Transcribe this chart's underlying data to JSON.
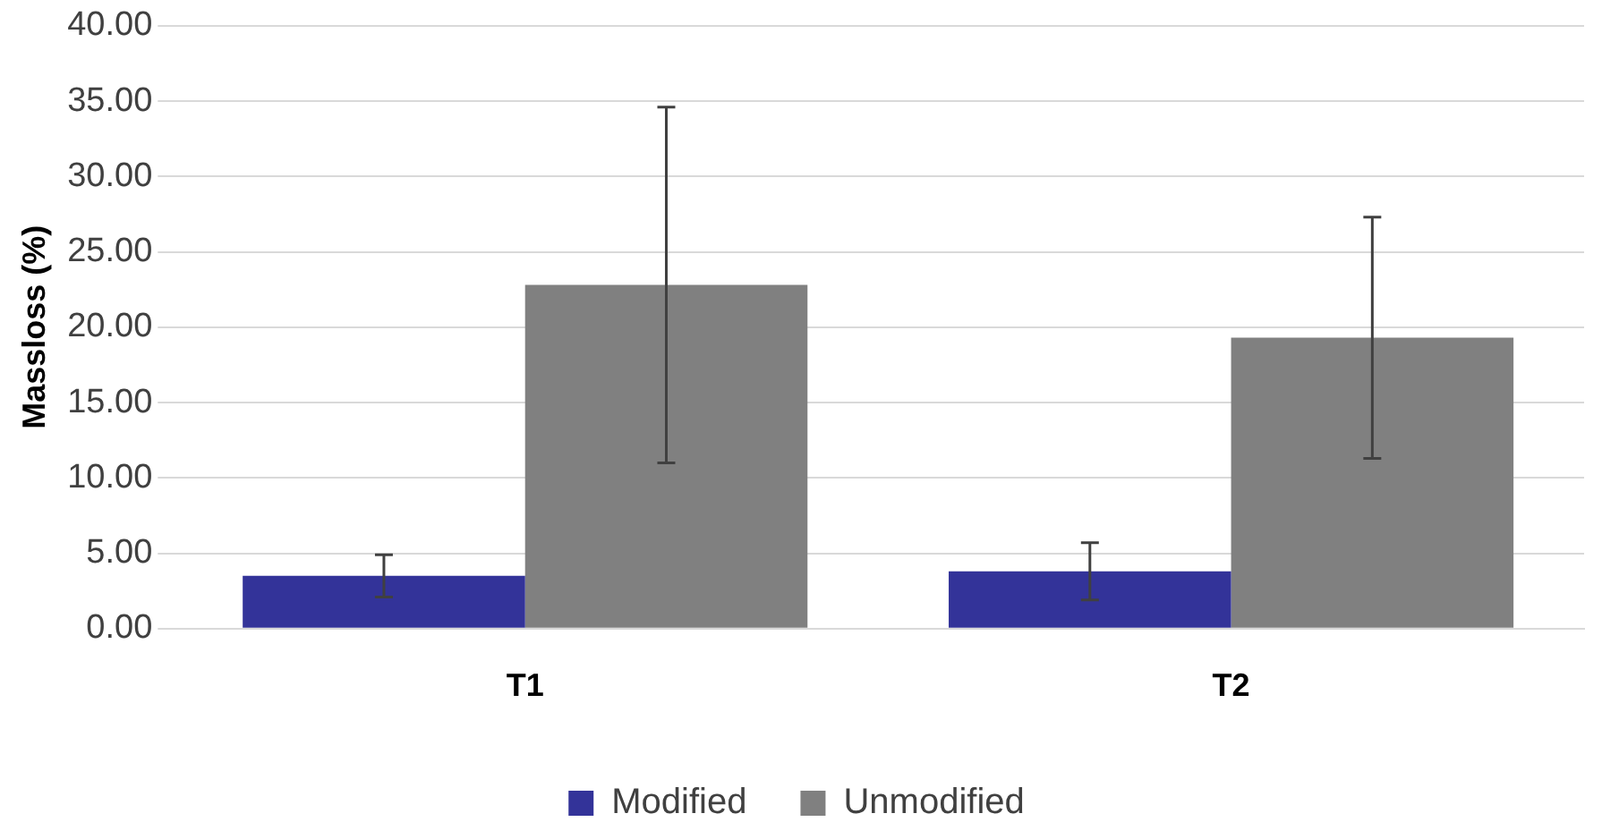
{
  "chart_data": {
    "type": "bar",
    "ylabel": "Massloss (%)",
    "categories": [
      "T1",
      "T2"
    ],
    "series": [
      {
        "name": "Modified",
        "color": "#333399",
        "values": [
          3.5,
          3.8
        ],
        "errors": [
          1.4,
          1.9
        ]
      },
      {
        "name": "Unmodified",
        "color": "#808080",
        "values": [
          22.8,
          19.3
        ],
        "errors": [
          11.8,
          8.0
        ]
      }
    ],
    "ylim": [
      0,
      40
    ],
    "yticks": [
      {
        "value": 0,
        "label": "0.00"
      },
      {
        "value": 5,
        "label": "5.00"
      },
      {
        "value": 10,
        "label": "10.00"
      },
      {
        "value": 15,
        "label": "15.00"
      },
      {
        "value": 20,
        "label": "20.00"
      },
      {
        "value": 25,
        "label": "25.00"
      },
      {
        "value": 30,
        "label": "30.00"
      },
      {
        "value": 35,
        "label": "35.00"
      },
      {
        "value": 40,
        "label": "40.00"
      }
    ],
    "grid": "y",
    "legend": "bottom"
  }
}
